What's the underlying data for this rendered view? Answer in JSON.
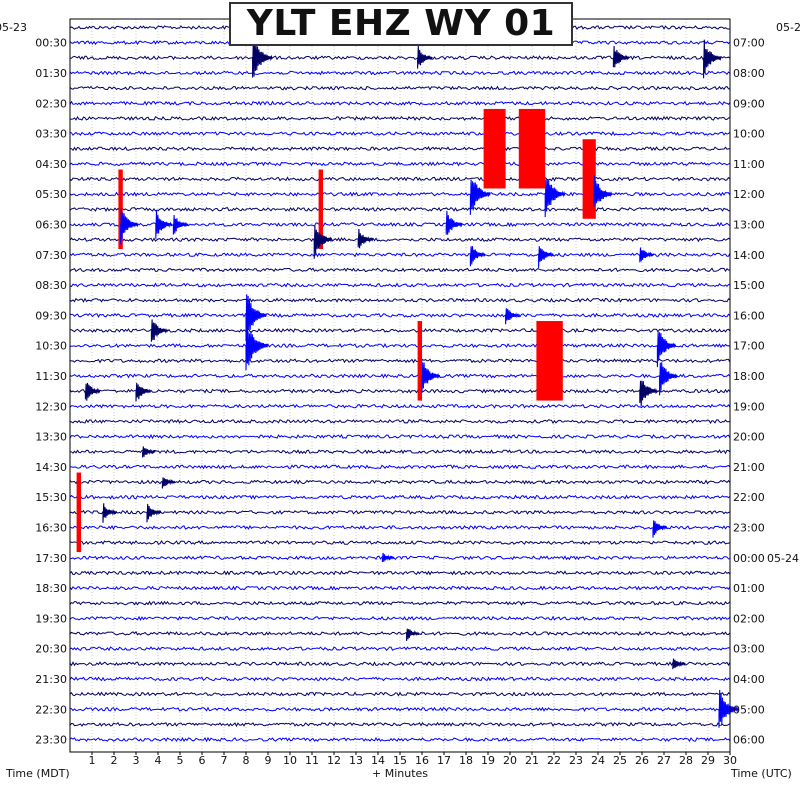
{
  "title": "YLT EHZ WY 01",
  "date_left": "05-23",
  "date_right": "05-24",
  "date_right_top": "05-2",
  "left_axis_label": "Time (MDT)",
  "bottom_axis_label": "+ Minutes",
  "right_axis_label": "Time (UTC)",
  "colors": {
    "trace_dark": "#000066",
    "trace_blue": "#0000ff",
    "clipped": "#ff0000",
    "grid": "#aaaaaa",
    "background": "#ffffff",
    "frame": "#000000"
  },
  "chart_data": {
    "type": "helicorder",
    "title": "YLT EHZ WY 01",
    "xlabel": "+ Minutes",
    "ylabel_left": "Time (MDT)",
    "ylabel_right": "Time (UTC)",
    "x_ticks": [
      1,
      2,
      3,
      4,
      5,
      6,
      7,
      8,
      9,
      10,
      11,
      12,
      13,
      14,
      15,
      16,
      17,
      18,
      19,
      20,
      21,
      22,
      23,
      24,
      25,
      26,
      27,
      28,
      29,
      30
    ],
    "xlim": [
      0,
      30
    ],
    "rows_per_hour": 2,
    "num_rows": 48,
    "left_ticks": [
      "00:30",
      "01:30",
      "02:30",
      "03:30",
      "04:30",
      "05:30",
      "06:30",
      "07:30",
      "08:30",
      "09:30",
      "10:30",
      "11:30",
      "12:30",
      "13:30",
      "14:30",
      "15:30",
      "16:30",
      "17:30",
      "18:30",
      "19:30",
      "20:30",
      "21:30",
      "22:30",
      "23:30"
    ],
    "right_ticks": [
      "07:00",
      "08:00",
      "09:00",
      "10:00",
      "11:00",
      "12:00",
      "13:00",
      "14:00",
      "15:00",
      "16:00",
      "17:00",
      "18:00",
      "19:00",
      "20:00",
      "21:00",
      "22:00",
      "23:00",
      "00:00",
      "01:00",
      "02:00",
      "03:00",
      "04:00",
      "05:00",
      "06:00"
    ],
    "grid": true,
    "events": [
      {
        "row": 2,
        "minute": 8.3,
        "amplitude": 1.8,
        "clipped": false
      },
      {
        "row": 2,
        "minute": 15.8,
        "amplitude": 1.0,
        "clipped": false
      },
      {
        "row": 2,
        "minute": 24.7,
        "amplitude": 1.1,
        "clipped": false
      },
      {
        "row": 2,
        "minute": 28.8,
        "amplitude": 1.5,
        "clipped": false
      },
      {
        "row": 8,
        "minute": 18.8,
        "amplitude": 2.5,
        "clipped": true,
        "duration": 1.0
      },
      {
        "row": 8,
        "minute": 20.4,
        "amplitude": 2.5,
        "clipped": true,
        "duration": 1.2
      },
      {
        "row": 10,
        "minute": 23.3,
        "amplitude": 2.5,
        "clipped": true,
        "duration": 0.6
      },
      {
        "row": 11,
        "minute": 18.2,
        "amplitude": 1.8,
        "clipped": false
      },
      {
        "row": 11,
        "minute": 21.6,
        "amplitude": 1.8,
        "clipped": false
      },
      {
        "row": 11,
        "minute": 23.8,
        "amplitude": 1.6,
        "clipped": false
      },
      {
        "row": 12,
        "minute": 2.2,
        "amplitude": 2.5,
        "clipped": true,
        "duration": 0.2
      },
      {
        "row": 12,
        "minute": 11.3,
        "amplitude": 2.5,
        "clipped": true,
        "duration": 0.2
      },
      {
        "row": 13,
        "minute": 2.3,
        "amplitude": 1.5,
        "clipped": false
      },
      {
        "row": 13,
        "minute": 3.9,
        "amplitude": 1.2,
        "clipped": false
      },
      {
        "row": 13,
        "minute": 4.7,
        "amplitude": 0.9,
        "clipped": false
      },
      {
        "row": 13,
        "minute": 17.1,
        "amplitude": 1.2,
        "clipped": false
      },
      {
        "row": 14,
        "minute": 11.1,
        "amplitude": 1.5,
        "clipped": false
      },
      {
        "row": 14,
        "minute": 13.1,
        "amplitude": 0.9,
        "clipped": false
      },
      {
        "row": 15,
        "minute": 18.2,
        "amplitude": 1.0,
        "clipped": false
      },
      {
        "row": 15,
        "minute": 21.3,
        "amplitude": 1.0,
        "clipped": false
      },
      {
        "row": 15,
        "minute": 25.9,
        "amplitude": 0.8,
        "clipped": false
      },
      {
        "row": 19,
        "minute": 8.0,
        "amplitude": 2.0,
        "clipped": false
      },
      {
        "row": 19,
        "minute": 19.8,
        "amplitude": 0.8,
        "clipped": false
      },
      {
        "row": 20,
        "minute": 3.7,
        "amplitude": 1.2,
        "clipped": false
      },
      {
        "row": 21,
        "minute": 8.0,
        "amplitude": 2.2,
        "clipped": false
      },
      {
        "row": 21,
        "minute": 26.7,
        "amplitude": 1.6,
        "clipped": false
      },
      {
        "row": 22,
        "minute": 15.8,
        "amplitude": 2.5,
        "clipped": true,
        "duration": 0.2
      },
      {
        "row": 22,
        "minute": 21.2,
        "amplitude": 2.5,
        "clipped": true,
        "duration": 1.2
      },
      {
        "row": 23,
        "minute": 16.0,
        "amplitude": 1.4,
        "clipped": false
      },
      {
        "row": 23,
        "minute": 26.8,
        "amplitude": 1.5,
        "clipped": false
      },
      {
        "row": 24,
        "minute": 0.7,
        "amplitude": 1.0,
        "clipped": false
      },
      {
        "row": 24,
        "minute": 3.0,
        "amplitude": 1.0,
        "clipped": false
      },
      {
        "row": 24,
        "minute": 25.9,
        "amplitude": 1.4,
        "clipped": false
      },
      {
        "row": 28,
        "minute": 3.3,
        "amplitude": 0.6,
        "clipped": false
      },
      {
        "row": 30,
        "minute": 4.2,
        "amplitude": 0.6,
        "clipped": false
      },
      {
        "row": 32,
        "minute": 0.3,
        "amplitude": 2.5,
        "clipped": true,
        "duration": 0.2
      },
      {
        "row": 32,
        "minute": 1.5,
        "amplitude": 0.8,
        "clipped": false
      },
      {
        "row": 32,
        "minute": 3.5,
        "amplitude": 0.8,
        "clipped": false
      },
      {
        "row": 33,
        "minute": 26.5,
        "amplitude": 0.8,
        "clipped": false
      },
      {
        "row": 35,
        "minute": 14.2,
        "amplitude": 0.5,
        "clipped": false
      },
      {
        "row": 40,
        "minute": 15.3,
        "amplitude": 0.6,
        "clipped": false
      },
      {
        "row": 42,
        "minute": 27.4,
        "amplitude": 0.6,
        "clipped": false
      },
      {
        "row": 45,
        "minute": 29.5,
        "amplitude": 1.8,
        "clipped": false
      }
    ]
  }
}
